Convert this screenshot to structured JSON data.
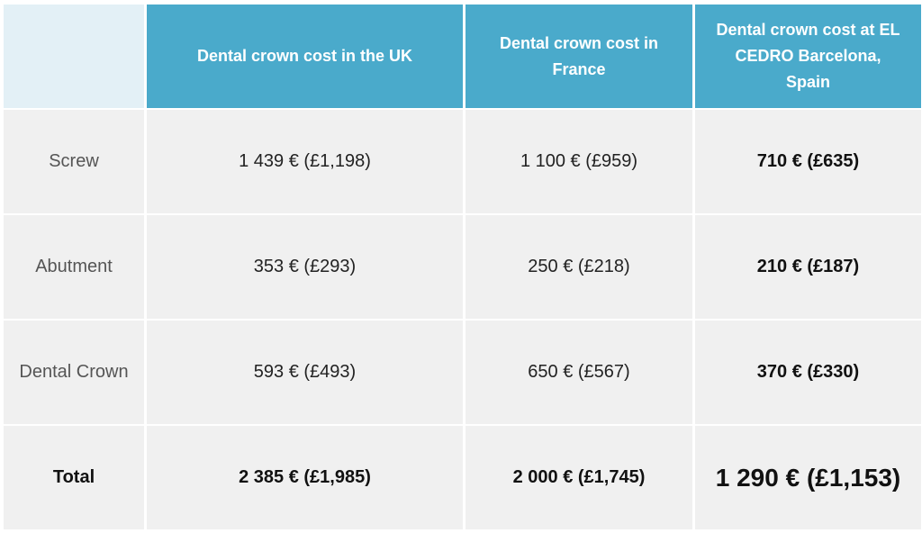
{
  "table": {
    "headers": [
      "Dental crown cost in the UK",
      "Dental crown cost in France",
      "Dental crown cost at EL CEDRO Barcelona, Spain"
    ],
    "rows": [
      {
        "label": "Screw",
        "cells": [
          "1 439 € (£1,198)",
          "1 100 € (£959)",
          "710 € (£635)"
        ]
      },
      {
        "label": "Abutment",
        "cells": [
          "353 € (£293)",
          "250 € (£218)",
          "210 € (£187)"
        ]
      },
      {
        "label": "Dental Crown",
        "cells": [
          "593 € (£493)",
          "650 € (£567)",
          "370 € (£330)"
        ]
      },
      {
        "label": "Total",
        "cells": [
          "2 385 € (£1,985)",
          "2 000 € (£1,745)",
          "1 290 € (£1,153)"
        ]
      }
    ]
  }
}
